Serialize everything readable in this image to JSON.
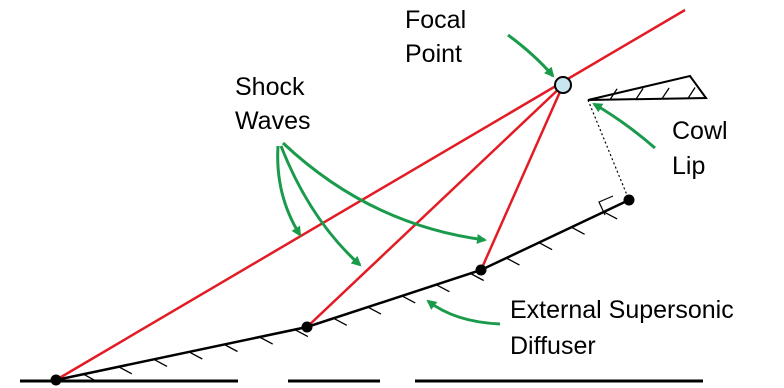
{
  "labels": {
    "focal_point": [
      "Focal",
      "Point"
    ],
    "shock_waves": [
      "Shock",
      "Waves"
    ],
    "cowl_lip": [
      "Cowl",
      "Lip"
    ],
    "diffuser": [
      "External Supersonic",
      "Diffuser"
    ]
  },
  "colors": {
    "shock": "#e21b24",
    "arrow": "#1a9a4b",
    "surface": "#000000",
    "focal_fill": "#c8e6ef",
    "background": "#ffffff"
  },
  "icons": {
    "focal_point": "circle-marker",
    "corner": "dot-marker",
    "right_angle": "right-angle-mark",
    "arrows": "curved-arrow"
  }
}
